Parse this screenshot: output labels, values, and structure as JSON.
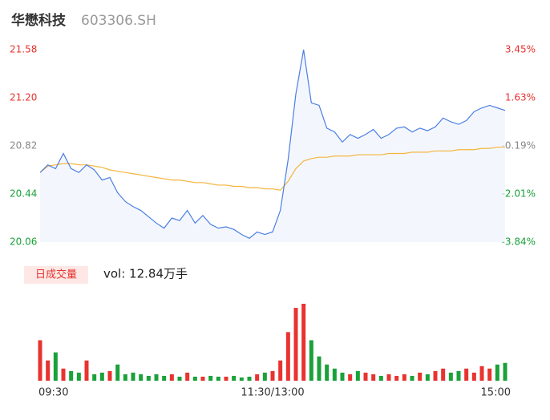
{
  "chart_data": {
    "type": "intraday",
    "title": "华懋科技",
    "subtitle": "603306.SH",
    "volume_label": "日成交量",
    "volume_text": "vol: 12.84万手",
    "x_labels": [
      "09:30",
      "11:30/13:00",
      "15:00"
    ],
    "ylim": [
      20.06,
      21.58
    ],
    "yticks": [
      21.58,
      21.2,
      20.82,
      20.44,
      20.06
    ],
    "ytick_labels": [
      "21.58",
      "21.20",
      "20.82",
      "20.44",
      "20.06"
    ],
    "y2lim": [
      -3.84,
      3.45
    ],
    "y2ticks": [
      {
        "value": 3.45,
        "label": "3.45%"
      },
      {
        "value": 1.63,
        "label": "1.63%"
      },
      {
        "value": -0.19,
        "label": "-0.19%"
      },
      {
        "value": -2.01,
        "label": "-2.01%"
      },
      {
        "value": -3.84,
        "label": "-3.84%"
      }
    ],
    "up_color": "#e8332f",
    "down_color": "#1aa13a",
    "flat_color": "#888888",
    "series": [
      {
        "name": "price",
        "color": "#4a7fe3",
        "values": [
          20.61,
          20.67,
          20.64,
          20.76,
          20.64,
          20.61,
          20.67,
          20.63,
          20.55,
          20.57,
          20.45,
          20.38,
          20.34,
          20.31,
          20.26,
          20.21,
          20.17,
          20.25,
          20.23,
          20.31,
          20.21,
          20.27,
          20.2,
          20.17,
          20.18,
          20.16,
          20.12,
          20.09,
          20.14,
          20.12,
          20.14,
          20.31,
          20.71,
          21.23,
          21.58,
          21.16,
          21.14,
          20.96,
          20.93,
          20.85,
          20.91,
          20.88,
          20.91,
          20.95,
          20.88,
          20.91,
          20.96,
          20.97,
          20.93,
          20.96,
          20.94,
          20.97,
          21.04,
          21.01,
          20.99,
          21.02,
          21.09,
          21.12,
          21.14,
          21.12,
          21.1
        ]
      },
      {
        "name": "average",
        "color": "#f5b43c",
        "values": [
          20.61,
          20.66,
          20.67,
          20.68,
          20.68,
          20.67,
          20.67,
          20.66,
          20.65,
          20.63,
          20.62,
          20.61,
          20.6,
          20.59,
          20.58,
          20.57,
          20.56,
          20.55,
          20.55,
          20.54,
          20.53,
          20.53,
          20.52,
          20.51,
          20.51,
          20.5,
          20.5,
          20.49,
          20.49,
          20.48,
          20.48,
          20.47,
          20.54,
          20.64,
          20.7,
          20.72,
          20.73,
          20.73,
          20.74,
          20.74,
          20.74,
          20.75,
          20.75,
          20.75,
          20.75,
          20.76,
          20.76,
          20.76,
          20.77,
          20.77,
          20.77,
          20.78,
          20.78,
          20.78,
          20.79,
          20.79,
          20.79,
          20.8,
          20.8,
          20.81,
          20.81
        ]
      }
    ],
    "volume": [
      50,
      25,
      35,
      15,
      12,
      10,
      25,
      8,
      10,
      12,
      20,
      8,
      10,
      8,
      6,
      8,
      6,
      8,
      5,
      10,
      5,
      5,
      6,
      5,
      5,
      6,
      4,
      5,
      8,
      10,
      12,
      25,
      60,
      90,
      95,
      50,
      30,
      20,
      15,
      10,
      8,
      12,
      10,
      8,
      6,
      8,
      6,
      8,
      6,
      10,
      8,
      12,
      15,
      10,
      12,
      15,
      10,
      18,
      15,
      20,
      22
    ]
  }
}
